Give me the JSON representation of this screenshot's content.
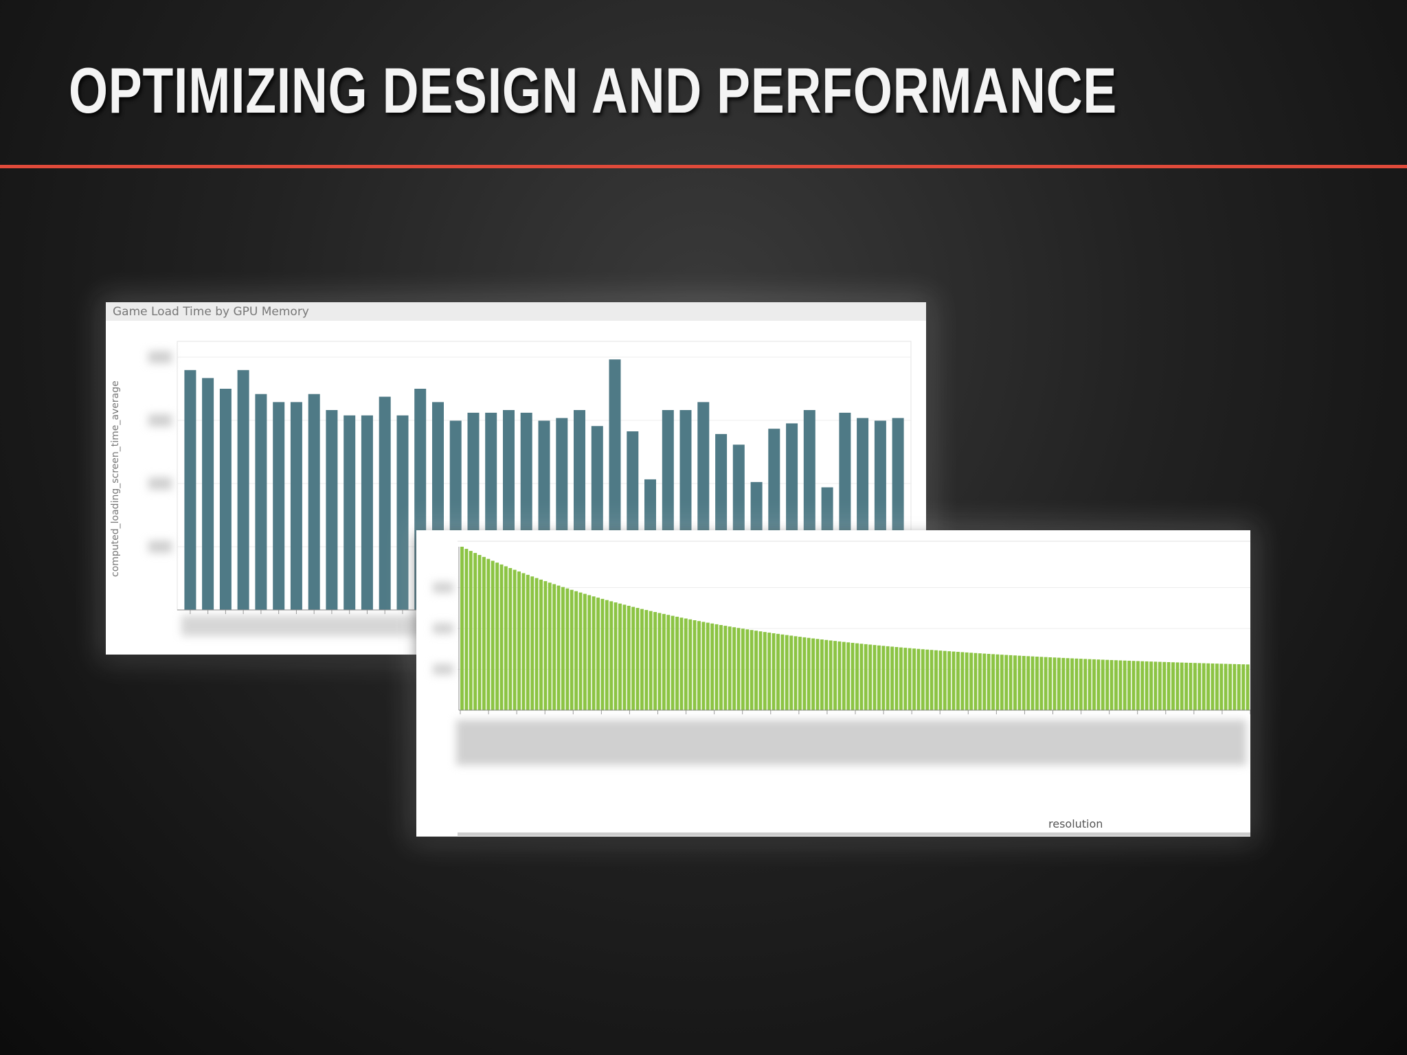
{
  "slide": {
    "title": "OPTIMIZING DESIGN AND PERFORMANCE"
  },
  "colors": {
    "accent_rule": "#e04a3a",
    "bar_series_1": "#4f7a86",
    "bar_series_2": "#8cc444"
  },
  "chart_data": [
    {
      "type": "bar",
      "title": "Game Load Time by GPU Memory",
      "xlabel": "",
      "ylabel": "computed_loading_screen_time_average",
      "ylim": [
        0,
        100
      ],
      "grid": true,
      "note": "tick labels and category labels are blurred/illegible; values are relative heights",
      "values": [
        90,
        87,
        83,
        90,
        81,
        78,
        78,
        81,
        75,
        73,
        73,
        80,
        73,
        83,
        78,
        71,
        74,
        74,
        75,
        74,
        71,
        72,
        75,
        69,
        94,
        67,
        49,
        75,
        75,
        78,
        66,
        62,
        48,
        68,
        70,
        75,
        46,
        74,
        72,
        71,
        72
      ]
    },
    {
      "type": "bar",
      "title": "",
      "xlabel": "resolution",
      "ylabel": "",
      "ylim": [
        0,
        100
      ],
      "grid": true,
      "note": "many thin bars sorted descending; labels blurred/illegible; values are relative heights",
      "count": 180,
      "first_value": 100,
      "last_value": 28
    }
  ]
}
